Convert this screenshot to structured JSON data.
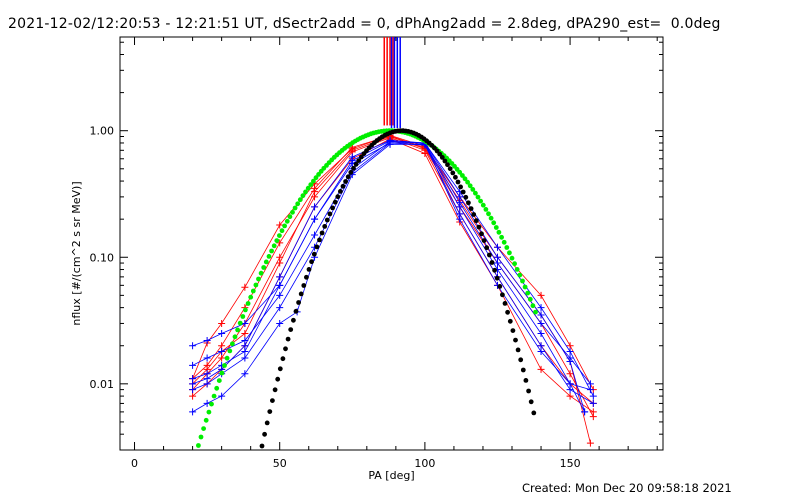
{
  "header": {
    "title": "2021-12-02/12:20:53 - 12:21:51 UT, dSectr2add = 0, dPhAng2add = 2.8deg, dPA290_est=  0.0deg"
  },
  "footer": {
    "created": "Created: Mon Dec 20 09:58:18 2021"
  },
  "chart_data": {
    "type": "line",
    "xlabel": "PA [deg]",
    "ylabel": "nflux [#/(cm^2 s sr MeV)]",
    "xlim": [
      -5,
      182
    ],
    "ylim": [
      0.003,
      5.5
    ],
    "y_scale": "log",
    "x_ticks": [
      0,
      50,
      100,
      150
    ],
    "y_ticks": [
      0.01,
      0.1,
      1.0
    ],
    "y_tick_labels": [
      "0.01",
      "0.10",
      "1.00"
    ],
    "colors": {
      "red_series": "#ff0000",
      "blue_series": "#0000ff",
      "green_fit": "#00ee00",
      "black_fit": "#000000"
    },
    "series": [
      {
        "color": "red",
        "marker": "plus",
        "x": [
          20,
          25,
          30,
          38,
          50,
          62,
          75,
          88,
          100,
          112,
          125,
          140,
          150,
          158
        ],
        "y": [
          0.011,
          0.021,
          0.03,
          0.058,
          0.18,
          0.38,
          0.72,
          0.92,
          0.75,
          0.3,
          0.12,
          0.05,
          0.02,
          0.009
        ]
      },
      {
        "color": "red",
        "marker": "plus",
        "x": [
          20,
          25,
          30,
          38,
          50,
          62,
          75,
          88,
          100,
          112,
          125,
          140,
          150,
          158
        ],
        "y": [
          0.009,
          0.012,
          0.016,
          0.03,
          0.1,
          0.3,
          0.68,
          0.88,
          0.7,
          0.22,
          0.07,
          0.02,
          0.01,
          0.007
        ]
      },
      {
        "color": "red",
        "marker": "plus",
        "x": [
          20,
          25,
          30,
          38,
          50,
          62,
          75,
          88,
          100,
          112,
          125,
          140,
          150,
          158
        ],
        "y": [
          0.008,
          0.01,
          0.013,
          0.02,
          0.07,
          0.25,
          0.6,
          0.86,
          0.66,
          0.19,
          0.06,
          0.013,
          0.008,
          0.006
        ]
      },
      {
        "color": "red",
        "marker": "plus",
        "x": [
          20,
          25,
          30,
          38,
          50,
          62,
          75,
          88,
          100,
          112,
          125,
          140,
          150,
          158
        ],
        "y": [
          0.01,
          0.013,
          0.018,
          0.025,
          0.09,
          0.33,
          0.7,
          0.9,
          0.72,
          0.25,
          0.09,
          0.03,
          0.012,
          0.0055
        ]
      },
      {
        "color": "red",
        "marker": "plus",
        "x": [
          20,
          25,
          30,
          38,
          50,
          62,
          75,
          88,
          100,
          112,
          125,
          140,
          150,
          157
        ],
        "y": [
          0.011,
          0.014,
          0.02,
          0.04,
          0.13,
          0.35,
          0.74,
          0.91,
          0.73,
          0.28,
          0.1,
          0.035,
          0.015,
          0.0034
        ]
      },
      {
        "color": "blue",
        "marker": "plus",
        "x": [
          20,
          25,
          30,
          38,
          50,
          62,
          75,
          88,
          100,
          112,
          125,
          140,
          150,
          155
        ],
        "y": [
          0.02,
          0.022,
          0.025,
          0.03,
          0.06,
          0.2,
          0.55,
          0.8,
          0.8,
          0.3,
          0.1,
          0.035,
          0.015,
          0.006
        ]
      },
      {
        "color": "blue",
        "marker": "plus",
        "x": [
          20,
          25,
          30,
          38,
          50,
          56,
          62,
          75,
          88,
          100,
          112,
          125,
          140,
          150,
          155
        ],
        "y": [
          0.006,
          0.007,
          0.008,
          0.012,
          0.03,
          0.037,
          0.1,
          0.45,
          0.78,
          0.78,
          0.25,
          0.08,
          0.025,
          0.01,
          0.006
        ]
      },
      {
        "color": "blue",
        "marker": "plus",
        "x": [
          20,
          25,
          30,
          38,
          50,
          62,
          75,
          88,
          100,
          112,
          125,
          140,
          150,
          157
        ],
        "y": [
          0.014,
          0.016,
          0.018,
          0.022,
          0.05,
          0.15,
          0.5,
          0.82,
          0.79,
          0.27,
          0.09,
          0.03,
          0.016,
          0.01
        ]
      },
      {
        "color": "blue",
        "marker": "plus",
        "x": [
          20,
          25,
          30,
          38,
          50,
          62,
          75,
          88,
          100,
          112,
          125,
          140,
          150,
          158
        ],
        "y": [
          0.009,
          0.01,
          0.012,
          0.016,
          0.04,
          0.12,
          0.47,
          0.8,
          0.77,
          0.22,
          0.07,
          0.02,
          0.009,
          0.007
        ]
      },
      {
        "color": "blue",
        "marker": "plus",
        "x": [
          20,
          25,
          30,
          38,
          50,
          62,
          75,
          88,
          100,
          112,
          125,
          140,
          150,
          158
        ],
        "y": [
          0.011,
          0.012,
          0.014,
          0.018,
          0.06,
          0.2,
          0.58,
          0.83,
          0.8,
          0.33,
          0.12,
          0.04,
          0.018,
          0.008
        ]
      },
      {
        "color": "blue",
        "marker": "plus",
        "x": [
          20,
          25,
          30,
          38,
          50,
          62,
          75,
          88,
          100,
          112,
          125,
          140,
          150,
          157
        ],
        "y": [
          0.01,
          0.011,
          0.013,
          0.02,
          0.07,
          0.25,
          0.62,
          0.84,
          0.8,
          0.2,
          0.06,
          0.018,
          0.01,
          0.009
        ]
      }
    ],
    "fits": [
      {
        "color": "green",
        "marker": "dot",
        "peak_x": 88,
        "peak_y": 1.0,
        "sigma_deg": 19.5,
        "x_range": [
          22,
          139
        ]
      },
      {
        "color": "black",
        "marker": "dot",
        "peak_x": 92,
        "peak_y": 1.0,
        "sigma_deg": 14.2,
        "x_range": [
          34,
          138
        ]
      }
    ],
    "spikes": [
      {
        "color": "red",
        "x": [
          86,
          87,
          88,
          89
        ],
        "y_from": 1.1,
        "y_to": 5.5
      },
      {
        "color": "blue",
        "x": [
          88.5,
          89.5,
          90.5,
          91.5
        ],
        "y_from": 1.05,
        "y_to": 5.5
      }
    ]
  }
}
